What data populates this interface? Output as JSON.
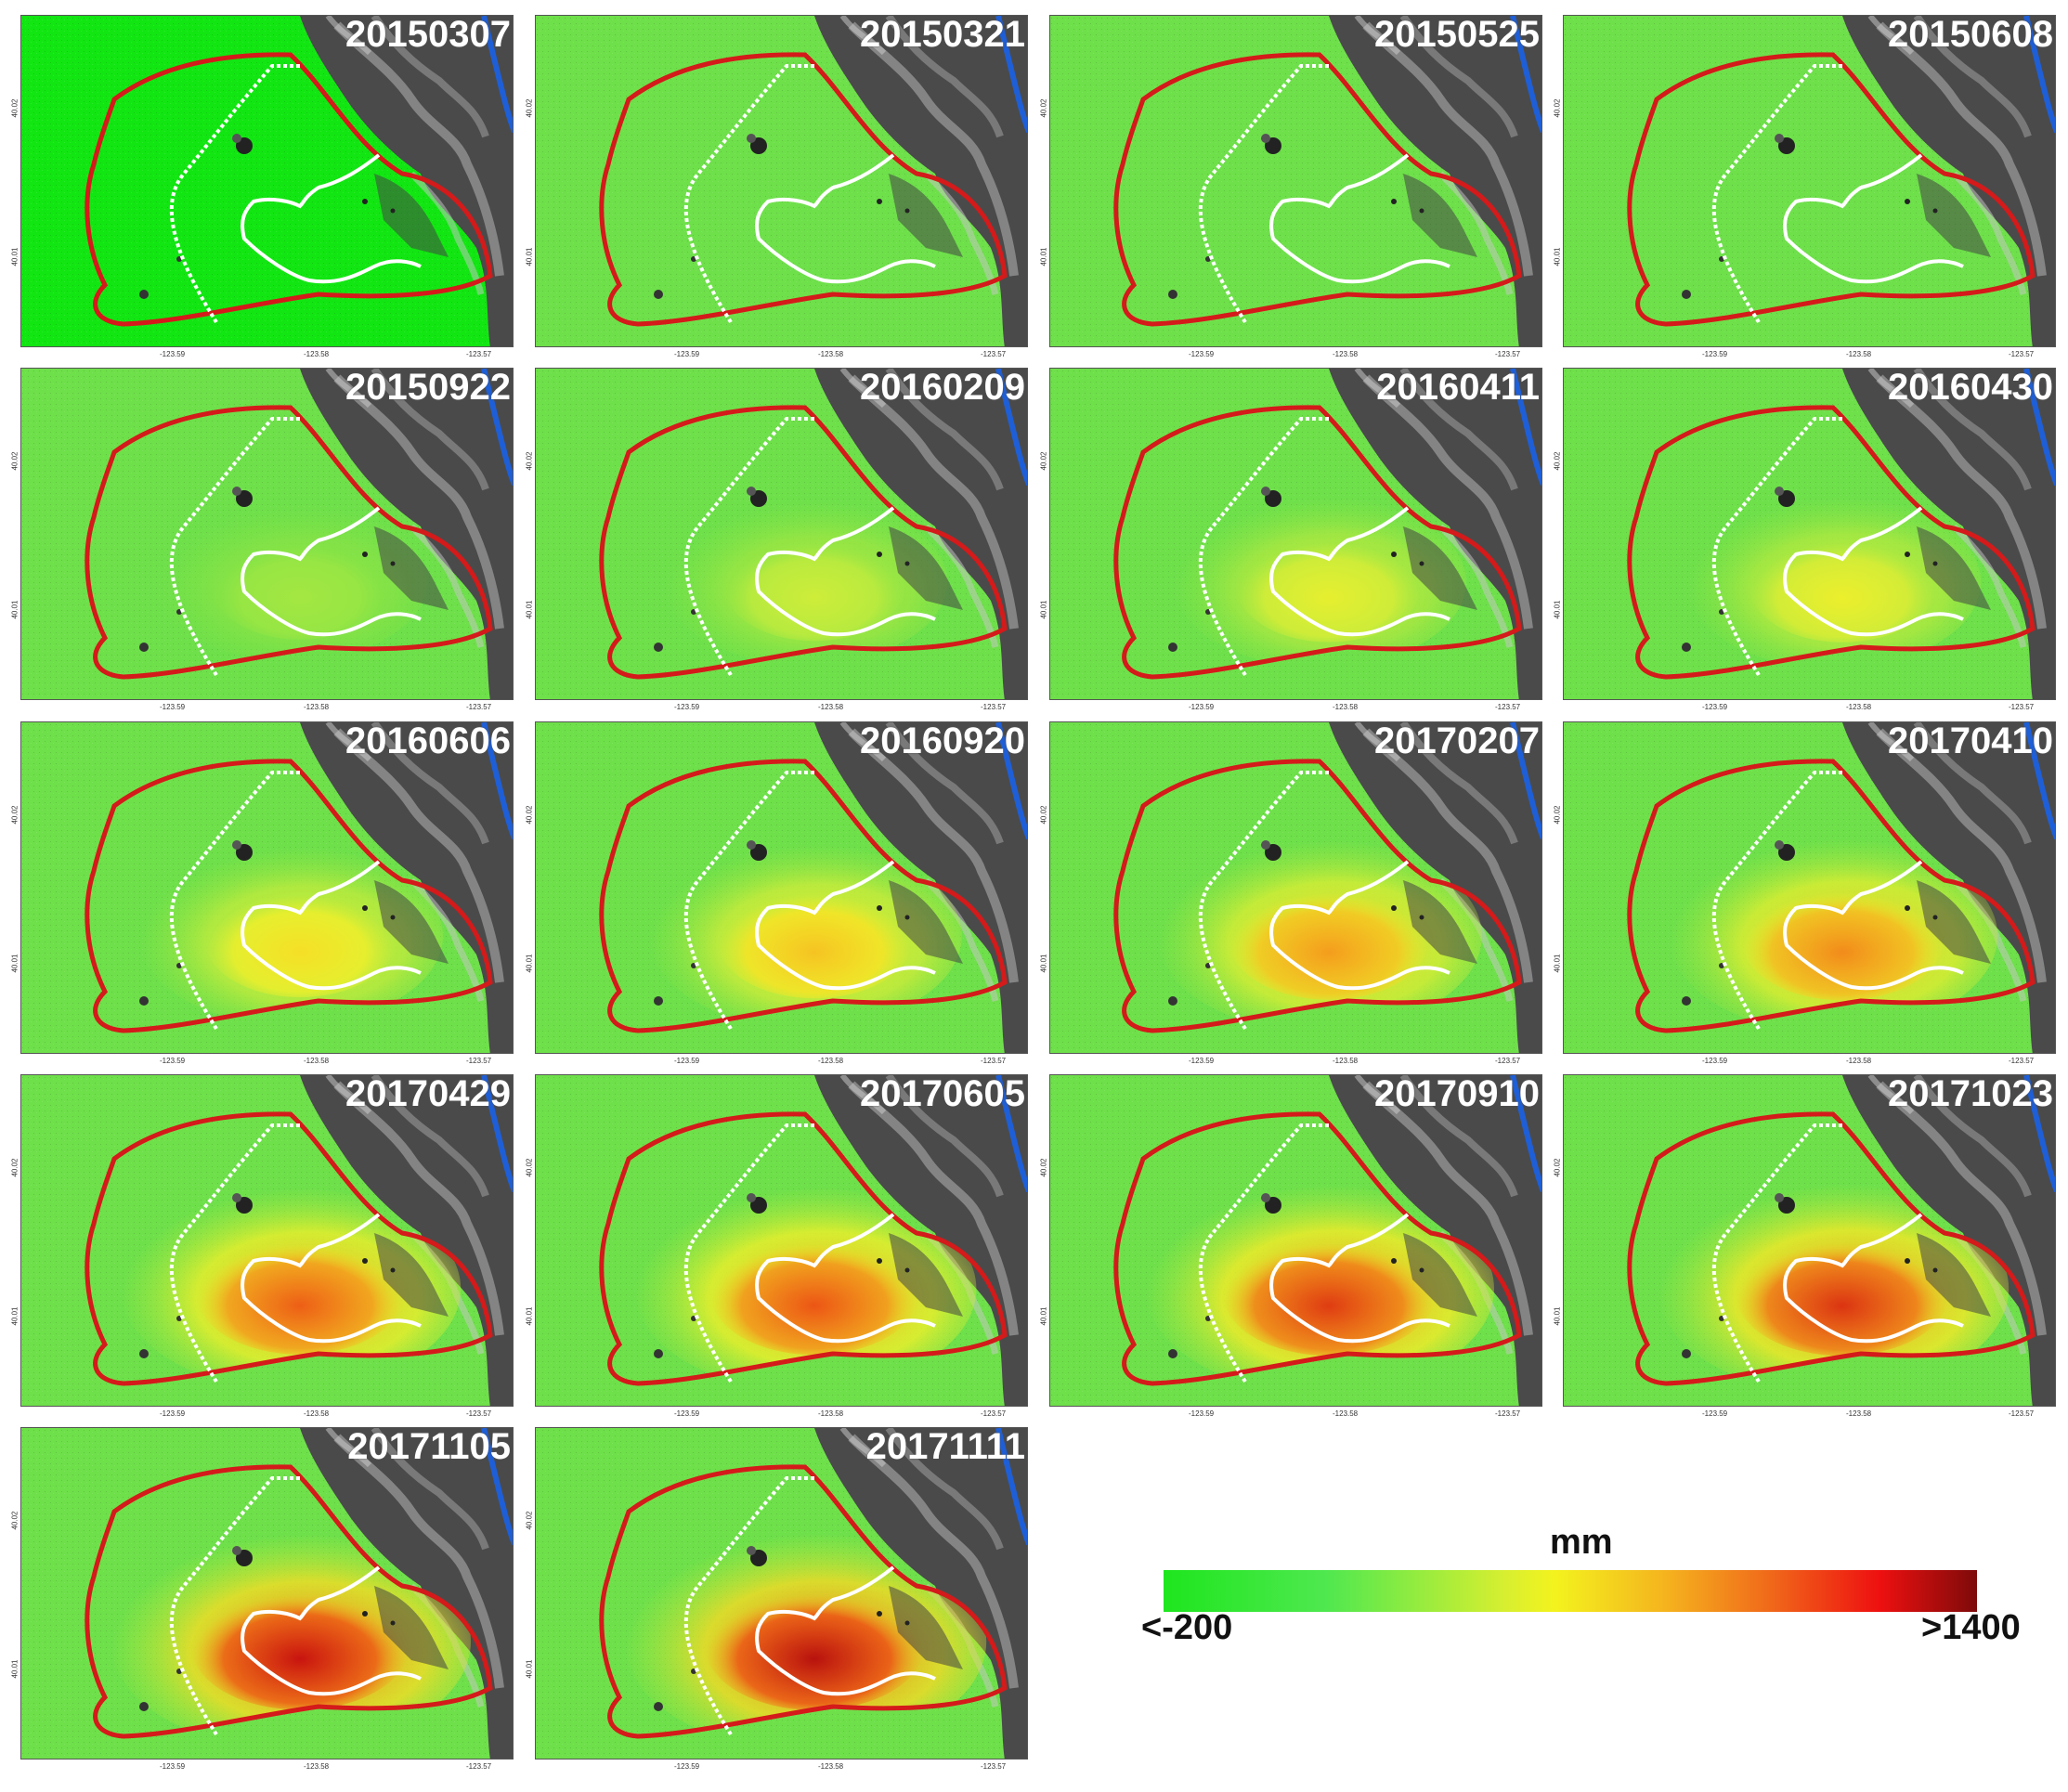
{
  "panels": [
    {
      "date": "20150307",
      "intensity": 0.0
    },
    {
      "date": "20150321",
      "intensity": 0.0
    },
    {
      "date": "20150525",
      "intensity": 0.0
    },
    {
      "date": "20150608",
      "intensity": 0.0
    },
    {
      "date": "20150922",
      "intensity": 0.12
    },
    {
      "date": "20160209",
      "intensity": 0.22
    },
    {
      "date": "20160411",
      "intensity": 0.3
    },
    {
      "date": "20160430",
      "intensity": 0.32
    },
    {
      "date": "20160606",
      "intensity": 0.4
    },
    {
      "date": "20160920",
      "intensity": 0.48
    },
    {
      "date": "20170207",
      "intensity": 0.58
    },
    {
      "date": "20170410",
      "intensity": 0.62
    },
    {
      "date": "20170429",
      "intensity": 0.72
    },
    {
      "date": "20170605",
      "intensity": 0.74
    },
    {
      "date": "20170910",
      "intensity": 0.8
    },
    {
      "date": "20171023",
      "intensity": 0.82
    },
    {
      "date": "20171105",
      "intensity": 0.9
    },
    {
      "date": "20171111",
      "intensity": 0.92
    }
  ],
  "axis": {
    "y_top": "40.02",
    "y_bottom": "40.01",
    "x_left": "-123.59",
    "x_mid": "-123.58",
    "x_right": "-123.57"
  },
  "legend": {
    "unit": "mm",
    "min_label": "<-200",
    "max_label": ">1400"
  },
  "colors": {
    "background_green": "#6ee04a",
    "boundary_red": "#d41a1a",
    "inner_white": "#ffffff",
    "river_blue": "#1e5fd8"
  }
}
